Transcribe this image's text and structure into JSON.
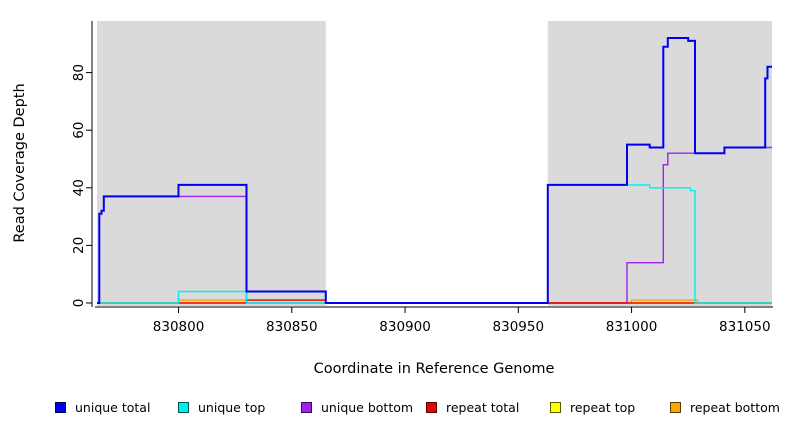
{
  "chart_data": {
    "type": "line",
    "line_style": "step",
    "title": "",
    "xlabel": "Coordinate in Reference Genome",
    "ylabel": "Read Coverage Depth",
    "xlim": [
      830764,
      831062
    ],
    "ylim": [
      0,
      98
    ],
    "x_ticks": [
      830800,
      830850,
      830900,
      830950,
      831000,
      831050
    ],
    "y_ticks": [
      0,
      20,
      40,
      60,
      80
    ],
    "grid": false,
    "legend_position": "bottom",
    "plot_background": "#FFFFFF",
    "shaded_region_color": "#DADADA",
    "shaded_regions": [
      {
        "x0": 830764,
        "x1": 830865
      },
      {
        "x0": 830963,
        "x1": 831062
      }
    ],
    "series": [
      {
        "name": "unique total",
        "color": "#0000EE",
        "points": [
          [
            830764,
            0
          ],
          [
            830765,
            31
          ],
          [
            830766,
            32
          ],
          [
            830767,
            37
          ],
          [
            830800,
            41
          ],
          [
            830830,
            4
          ],
          [
            830865,
            0
          ],
          [
            830963,
            41
          ],
          [
            830998,
            55
          ],
          [
            831008,
            54
          ],
          [
            831014,
            89
          ],
          [
            831016,
            92
          ],
          [
            831025,
            91
          ],
          [
            831028,
            52
          ],
          [
            831041,
            54
          ],
          [
            831059,
            78
          ],
          [
            831060,
            82
          ],
          [
            831062,
            82
          ]
        ]
      },
      {
        "name": "unique top",
        "color": "#00EEEE",
        "points": [
          [
            830764,
            0
          ],
          [
            830800,
            4
          ],
          [
            830830,
            0
          ],
          [
            830963,
            41
          ],
          [
            831008,
            40
          ],
          [
            831026,
            39
          ],
          [
            831028,
            0
          ],
          [
            831062,
            0
          ]
        ]
      },
      {
        "name": "unique bottom",
        "color": "#A020F0",
        "points": [
          [
            830764,
            0
          ],
          [
            830765,
            31
          ],
          [
            830766,
            32
          ],
          [
            830767,
            37
          ],
          [
            830830,
            0
          ],
          [
            830998,
            14
          ],
          [
            831014,
            48
          ],
          [
            831016,
            52
          ],
          [
            831041,
            54
          ],
          [
            831062,
            54
          ]
        ]
      },
      {
        "name": "repeat total",
        "color": "#EE0000",
        "points": [
          [
            830764,
            0
          ],
          [
            830830,
            1
          ],
          [
            830865,
            0
          ],
          [
            831062,
            0
          ]
        ]
      },
      {
        "name": "repeat top",
        "color": "#FFFF00",
        "points": [
          [
            830764,
            0
          ],
          [
            831062,
            0
          ]
        ]
      },
      {
        "name": "repeat bottom",
        "color": "#FFA500",
        "points": [
          [
            830764,
            0
          ],
          [
            830800,
            1
          ],
          [
            830865,
            0
          ],
          [
            831000,
            1
          ],
          [
            831029,
            0
          ],
          [
            831062,
            0
          ]
        ]
      }
    ]
  }
}
